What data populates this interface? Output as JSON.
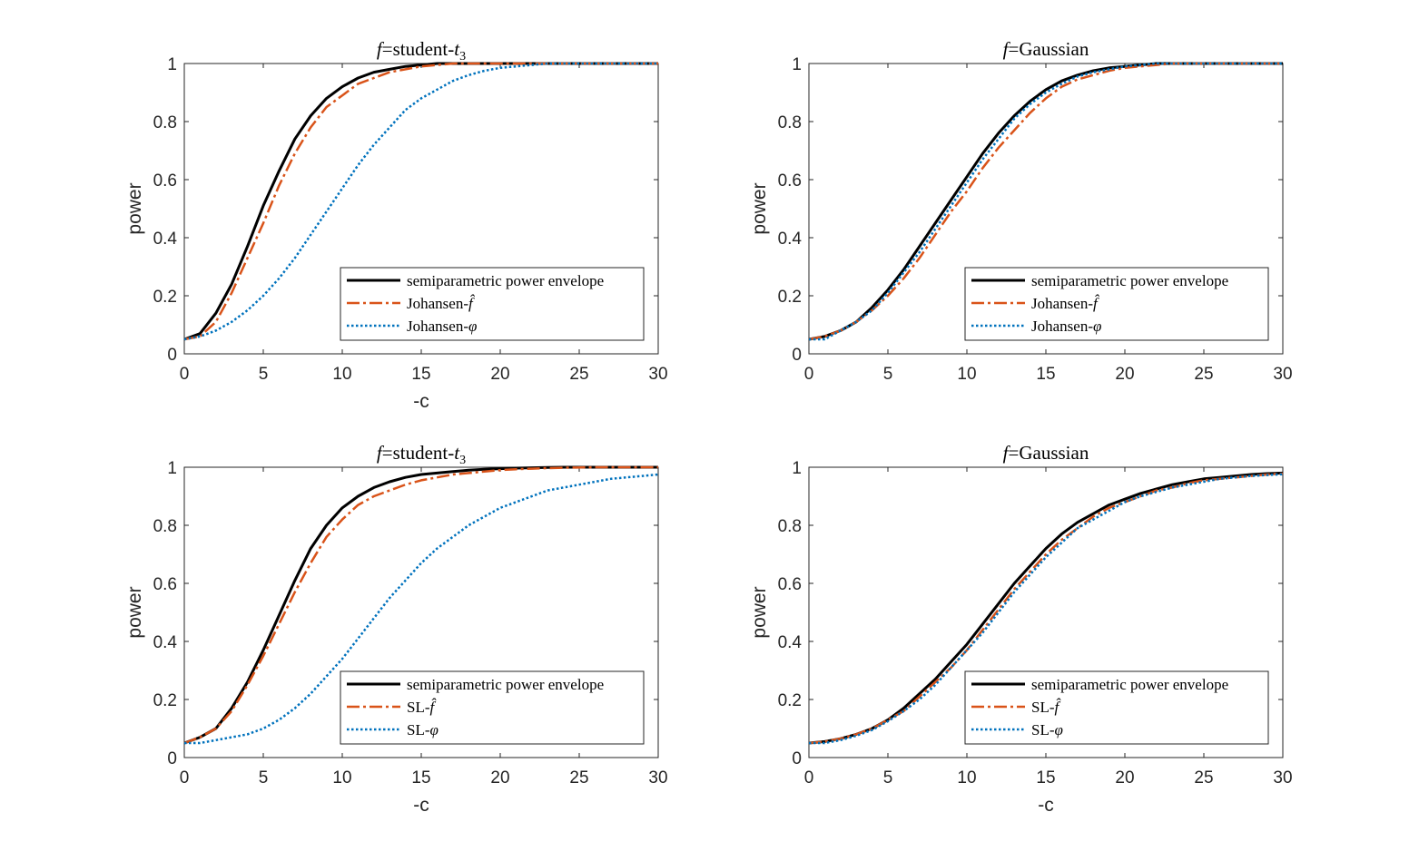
{
  "colors": {
    "envelope": "#000000",
    "fhat": "#D95319",
    "phi": "#0072BD",
    "axis": "#262626"
  },
  "chart_data": [
    {
      "type": "line",
      "title_prefix": "f",
      "title_text": "=student-",
      "title_var": "t",
      "title_sub": "3",
      "xlabel": "-c",
      "ylabel": "power",
      "xlim": [
        0,
        30
      ],
      "ylim": [
        0,
        1
      ],
      "xticks": [
        "0",
        "5",
        "10",
        "15",
        "20",
        "25",
        "30"
      ],
      "yticks": [
        "0",
        "0.2",
        "0.4",
        "0.6",
        "0.8",
        "1"
      ],
      "legend_position": "bottom-right",
      "x": [
        0,
        1,
        2,
        3,
        4,
        5,
        6,
        7,
        8,
        9,
        10,
        11,
        12,
        13,
        14,
        15,
        16,
        17,
        18,
        19,
        20,
        21,
        22,
        23,
        24,
        25,
        26,
        27,
        28,
        29,
        30
      ],
      "series": [
        {
          "name": "semiparametric power envelope",
          "name_extra": "",
          "style": "solid",
          "color_key": "envelope",
          "values": [
            0.05,
            0.07,
            0.14,
            0.24,
            0.37,
            0.51,
            0.63,
            0.74,
            0.82,
            0.88,
            0.92,
            0.95,
            0.97,
            0.98,
            0.99,
            0.995,
            1.0,
            1.0,
            1.0,
            1.0,
            1.0,
            1.0,
            1.0,
            1.0,
            1.0,
            1.0,
            1.0,
            1.0,
            1.0,
            1.0,
            1.0
          ]
        },
        {
          "name": "Johansen-",
          "name_extra": "f̂",
          "style": "dashdot",
          "color_key": "fhat",
          "values": [
            0.05,
            0.06,
            0.11,
            0.21,
            0.33,
            0.45,
            0.58,
            0.69,
            0.78,
            0.85,
            0.89,
            0.93,
            0.95,
            0.97,
            0.98,
            0.99,
            0.995,
            1.0,
            1.0,
            1.0,
            1.0,
            1.0,
            1.0,
            1.0,
            1.0,
            1.0,
            1.0,
            1.0,
            1.0,
            1.0,
            1.0
          ]
        },
        {
          "name": "Johansen-",
          "name_extra": "φ",
          "style": "dotted",
          "color_key": "phi",
          "values": [
            0.05,
            0.06,
            0.08,
            0.11,
            0.15,
            0.2,
            0.26,
            0.33,
            0.41,
            0.49,
            0.57,
            0.65,
            0.72,
            0.78,
            0.84,
            0.88,
            0.91,
            0.94,
            0.96,
            0.975,
            0.985,
            0.99,
            0.995,
            1.0,
            1.0,
            1.0,
            1.0,
            1.0,
            1.0,
            1.0,
            1.0
          ]
        }
      ]
    },
    {
      "type": "line",
      "title_prefix": "f",
      "title_text": "=Gaussian",
      "title_var": "",
      "title_sub": "",
      "xlabel": "",
      "ylabel": "power",
      "xlim": [
        0,
        30
      ],
      "ylim": [
        0,
        1
      ],
      "xticks": [
        "0",
        "5",
        "10",
        "15",
        "20",
        "25",
        "30"
      ],
      "yticks": [
        "0",
        "0.2",
        "0.4",
        "0.6",
        "0.8",
        "1"
      ],
      "legend_position": "bottom-right",
      "x": [
        0,
        1,
        2,
        3,
        4,
        5,
        6,
        7,
        8,
        9,
        10,
        11,
        12,
        13,
        14,
        15,
        16,
        17,
        18,
        19,
        20,
        21,
        22,
        23,
        24,
        25,
        26,
        27,
        28,
        29,
        30
      ],
      "series": [
        {
          "name": "semiparametric power envelope",
          "name_extra": "",
          "style": "solid",
          "color_key": "envelope",
          "values": [
            0.05,
            0.06,
            0.08,
            0.11,
            0.16,
            0.22,
            0.29,
            0.37,
            0.45,
            0.53,
            0.61,
            0.69,
            0.76,
            0.82,
            0.87,
            0.91,
            0.94,
            0.96,
            0.975,
            0.985,
            0.99,
            0.995,
            1.0,
            1.0,
            1.0,
            1.0,
            1.0,
            1.0,
            1.0,
            1.0,
            1.0
          ]
        },
        {
          "name": "Johansen-",
          "name_extra": "f̂",
          "style": "dashdot",
          "color_key": "fhat",
          "values": [
            0.05,
            0.06,
            0.08,
            0.11,
            0.15,
            0.2,
            0.26,
            0.33,
            0.41,
            0.49,
            0.56,
            0.64,
            0.71,
            0.77,
            0.83,
            0.88,
            0.92,
            0.945,
            0.96,
            0.975,
            0.985,
            0.99,
            0.995,
            1.0,
            1.0,
            1.0,
            1.0,
            1.0,
            1.0,
            1.0,
            1.0
          ]
        },
        {
          "name": "Johansen-",
          "name_extra": "φ",
          "style": "dotted",
          "color_key": "phi",
          "values": [
            0.05,
            0.05,
            0.08,
            0.11,
            0.15,
            0.21,
            0.28,
            0.35,
            0.43,
            0.51,
            0.59,
            0.67,
            0.74,
            0.81,
            0.86,
            0.9,
            0.93,
            0.955,
            0.97,
            0.98,
            0.99,
            0.995,
            1.0,
            1.0,
            1.0,
            1.0,
            1.0,
            1.0,
            1.0,
            1.0,
            1.0
          ]
        }
      ]
    },
    {
      "type": "line",
      "title_prefix": "f",
      "title_text": "=student-",
      "title_var": "t",
      "title_sub": "3",
      "xlabel": "-c",
      "ylabel": "power",
      "xlim": [
        0,
        30
      ],
      "ylim": [
        0,
        1
      ],
      "xticks": [
        "0",
        "5",
        "10",
        "15",
        "20",
        "25",
        "30"
      ],
      "yticks": [
        "0",
        "0.2",
        "0.4",
        "0.6",
        "0.8",
        "1"
      ],
      "legend_position": "bottom-right",
      "x": [
        0,
        1,
        2,
        3,
        4,
        5,
        6,
        7,
        8,
        9,
        10,
        11,
        12,
        13,
        14,
        15,
        16,
        17,
        18,
        19,
        20,
        21,
        22,
        23,
        24,
        25,
        26,
        27,
        28,
        29,
        30
      ],
      "series": [
        {
          "name": "semiparametric power envelope",
          "name_extra": "",
          "style": "solid",
          "color_key": "envelope",
          "values": [
            0.05,
            0.07,
            0.1,
            0.17,
            0.26,
            0.37,
            0.49,
            0.61,
            0.72,
            0.8,
            0.86,
            0.9,
            0.93,
            0.95,
            0.965,
            0.975,
            0.98,
            0.985,
            0.99,
            0.993,
            0.995,
            0.997,
            0.998,
            0.999,
            1.0,
            1.0,
            1.0,
            1.0,
            1.0,
            1.0,
            1.0
          ]
        },
        {
          "name": "SL-",
          "name_extra": "f̂",
          "style": "dashdot",
          "color_key": "fhat",
          "values": [
            0.05,
            0.07,
            0.1,
            0.16,
            0.25,
            0.35,
            0.46,
            0.57,
            0.67,
            0.76,
            0.82,
            0.87,
            0.9,
            0.92,
            0.94,
            0.955,
            0.965,
            0.975,
            0.98,
            0.985,
            0.99,
            0.993,
            0.995,
            0.997,
            0.998,
            0.999,
            1.0,
            1.0,
            1.0,
            1.0,
            1.0
          ]
        },
        {
          "name": "SL-",
          "name_extra": "φ",
          "style": "dotted",
          "color_key": "phi",
          "values": [
            0.05,
            0.05,
            0.06,
            0.07,
            0.08,
            0.1,
            0.13,
            0.17,
            0.22,
            0.28,
            0.34,
            0.41,
            0.48,
            0.55,
            0.61,
            0.67,
            0.72,
            0.76,
            0.8,
            0.83,
            0.86,
            0.88,
            0.9,
            0.92,
            0.93,
            0.94,
            0.95,
            0.96,
            0.965,
            0.97,
            0.975
          ]
        }
      ]
    },
    {
      "type": "line",
      "title_prefix": "f",
      "title_text": "=Gaussian",
      "title_var": "",
      "title_sub": "",
      "xlabel": "-c",
      "ylabel": "power",
      "xlim": [
        0,
        30
      ],
      "ylim": [
        0,
        1
      ],
      "xticks": [
        "0",
        "5",
        "10",
        "15",
        "20",
        "25",
        "30"
      ],
      "yticks": [
        "0",
        "0.2",
        "0.4",
        "0.6",
        "0.8",
        "1"
      ],
      "legend_position": "bottom-right",
      "x": [
        0,
        1,
        2,
        3,
        4,
        5,
        6,
        7,
        8,
        9,
        10,
        11,
        12,
        13,
        14,
        15,
        16,
        17,
        18,
        19,
        20,
        21,
        22,
        23,
        24,
        25,
        26,
        27,
        28,
        29,
        30
      ],
      "series": [
        {
          "name": "semiparametric power envelope",
          "name_extra": "",
          "style": "solid",
          "color_key": "envelope",
          "values": [
            0.05,
            0.055,
            0.065,
            0.08,
            0.1,
            0.13,
            0.17,
            0.22,
            0.27,
            0.33,
            0.39,
            0.46,
            0.53,
            0.6,
            0.66,
            0.72,
            0.77,
            0.81,
            0.84,
            0.87,
            0.89,
            0.91,
            0.925,
            0.94,
            0.95,
            0.96,
            0.965,
            0.97,
            0.975,
            0.978,
            0.98
          ]
        },
        {
          "name": "SL-",
          "name_extra": "f̂",
          "style": "dashdot",
          "color_key": "fhat",
          "values": [
            0.05,
            0.055,
            0.065,
            0.08,
            0.1,
            0.13,
            0.16,
            0.21,
            0.26,
            0.31,
            0.37,
            0.44,
            0.51,
            0.58,
            0.64,
            0.7,
            0.75,
            0.79,
            0.83,
            0.86,
            0.88,
            0.9,
            0.92,
            0.93,
            0.945,
            0.955,
            0.96,
            0.965,
            0.97,
            0.975,
            0.978
          ]
        },
        {
          "name": "SL-",
          "name_extra": "φ",
          "style": "dotted",
          "color_key": "phi",
          "values": [
            0.05,
            0.05,
            0.06,
            0.075,
            0.095,
            0.125,
            0.16,
            0.2,
            0.25,
            0.31,
            0.37,
            0.43,
            0.5,
            0.57,
            0.63,
            0.69,
            0.74,
            0.79,
            0.82,
            0.85,
            0.88,
            0.9,
            0.915,
            0.93,
            0.94,
            0.95,
            0.96,
            0.965,
            0.97,
            0.973,
            0.976
          ]
        }
      ]
    }
  ]
}
